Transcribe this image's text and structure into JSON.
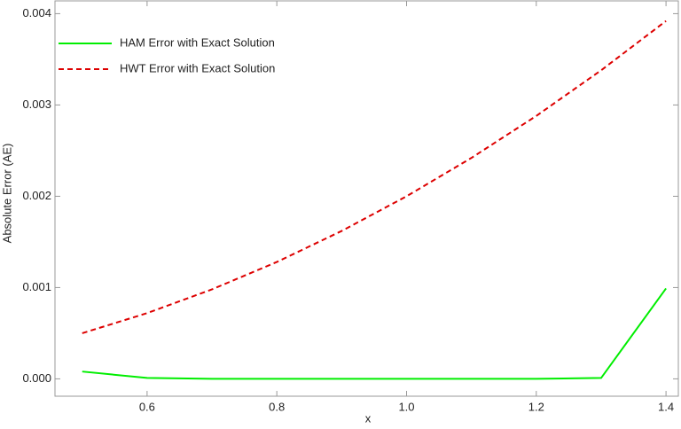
{
  "chart_data": {
    "type": "line",
    "x_label": "x",
    "y_label": "Absolute Error (AE)",
    "x": [
      0.5,
      0.6,
      0.7,
      0.8,
      0.9,
      1.0,
      1.1,
      1.2,
      1.3,
      1.4
    ],
    "series": [
      {
        "name": "HAM Error with Exact Solution",
        "color": "#00ee00",
        "dash": "solid",
        "values": [
          8e-05,
          1e-05,
          0,
          0,
          0,
          0,
          0,
          0,
          1e-05,
          0.00099
        ]
      },
      {
        "name": "HWT Error with Exact Solution",
        "color": "#dd0000",
        "dash": "dashed",
        "values": [
          0.0005,
          0.00072,
          0.00098,
          0.00128,
          0.00162,
          0.002,
          0.00242,
          0.00288,
          0.00338,
          0.00392
        ]
      }
    ],
    "xlim": [
      0.458,
      1.419
    ],
    "ylim": [
      -0.00019,
      0.00414
    ],
    "xticks": [
      0.6,
      0.8,
      {
        "value": 1.0,
        "label": "1.0"
      },
      1.2,
      1.4
    ],
    "yticks": [
      {
        "value": 0,
        "label": "0.000"
      },
      {
        "value": 0.001,
        "label": "0.001"
      },
      {
        "value": 0.002,
        "label": "0.002"
      },
      {
        "value": 0.003,
        "label": "0.003"
      },
      {
        "value": 0.004,
        "label": "0.004"
      }
    ],
    "legend": "upper-left"
  }
}
